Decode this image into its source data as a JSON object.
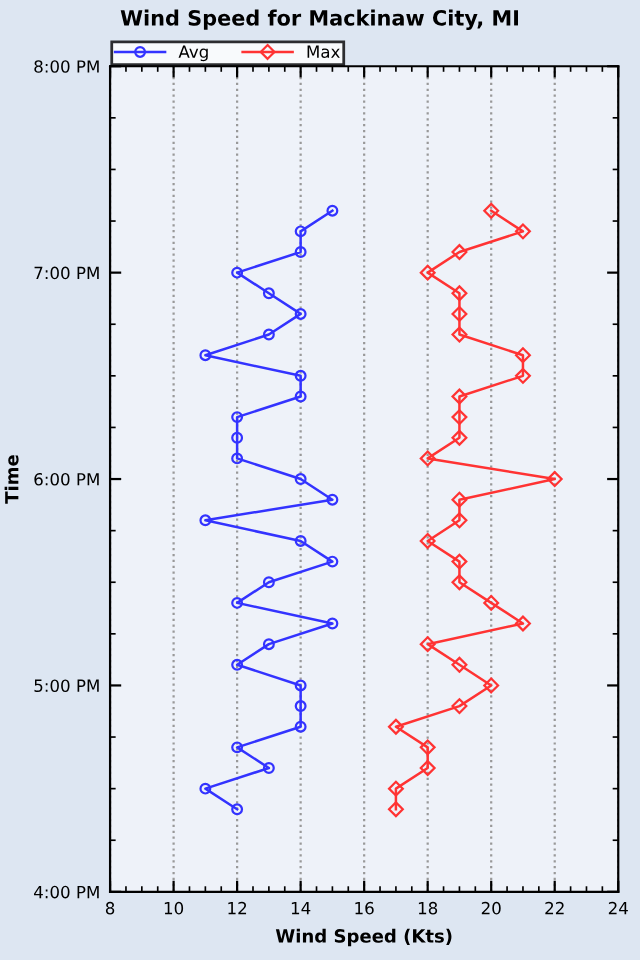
{
  "chart_data": {
    "type": "line",
    "title": "Wind Speed for Mackinaw City, MI",
    "xlabel": "Wind Speed (Kts)",
    "ylabel": "Time",
    "xlim": [
      8,
      24
    ],
    "xticks": [
      8,
      10,
      12,
      14,
      16,
      18,
      20,
      22,
      24
    ],
    "ylim": [
      16,
      20
    ],
    "yticks": [
      {
        "value": 16,
        "label": "4:00 PM"
      },
      {
        "value": 17,
        "label": "5:00 PM"
      },
      {
        "value": 18,
        "label": "6:00 PM"
      },
      {
        "value": 19,
        "label": "7:00 PM"
      },
      {
        "value": 20,
        "label": "8:00 PM"
      }
    ],
    "grid": "x",
    "legend": "top left",
    "line_style": "solid",
    "series": [
      {
        "name": "Avg",
        "color": "#3333ff",
        "marker": "circle",
        "x": [
          12,
          11,
          13,
          12,
          14,
          14,
          14,
          12,
          13,
          15,
          12,
          13,
          15,
          14,
          11,
          15,
          14,
          12,
          12,
          12,
          14,
          14,
          11,
          13,
          14,
          13,
          12,
          14,
          14,
          15
        ],
        "values": [
          16.4,
          16.5,
          16.6,
          16.7,
          16.8,
          16.9,
          17.0,
          17.1,
          17.2,
          17.3,
          17.4,
          17.5,
          17.6,
          17.7,
          17.8,
          17.9,
          18.0,
          18.1,
          18.2,
          18.3,
          18.4,
          18.5,
          18.6,
          18.7,
          18.8,
          18.9,
          19.0,
          19.1,
          19.2,
          19.3
        ]
      },
      {
        "name": "Max",
        "color": "#ff3333",
        "marker": "diamond",
        "x": [
          17,
          17,
          18,
          18,
          17,
          19,
          20,
          19,
          18,
          21,
          20,
          19,
          19,
          18,
          19,
          19,
          22,
          18,
          19,
          19,
          19,
          21,
          21,
          19,
          19,
          19,
          18,
          19,
          21,
          20
        ],
        "values": [
          16.4,
          16.5,
          16.6,
          16.7,
          16.8,
          16.9,
          17.0,
          17.1,
          17.2,
          17.3,
          17.4,
          17.5,
          17.6,
          17.7,
          17.8,
          17.9,
          18.0,
          18.1,
          18.2,
          18.3,
          18.4,
          18.5,
          18.6,
          18.7,
          18.8,
          18.9,
          19.0,
          19.1,
          19.2,
          19.3
        ]
      }
    ]
  }
}
